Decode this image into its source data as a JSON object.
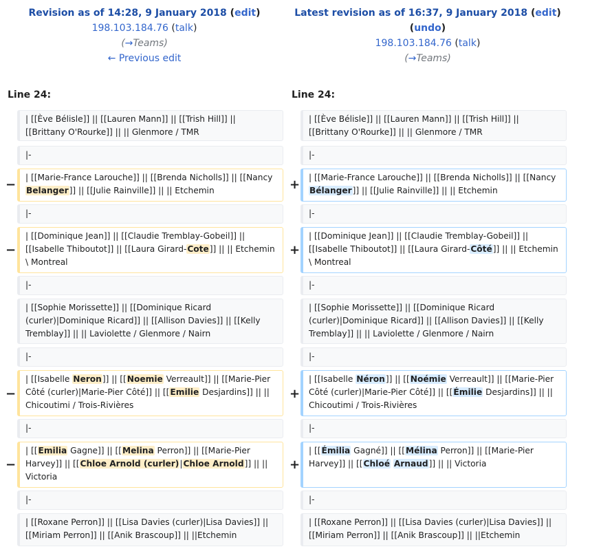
{
  "left": {
    "title_prefix": "Revision as of 14:28, 9 January 2018",
    "open_paren": "(",
    "edit_label": "edit",
    "close_paren": ")",
    "user": "198.103.184.76",
    "talk_label": "talk",
    "comment_arrow": "→",
    "comment": "Teams",
    "prev_edit": "← Previous edit",
    "line_label": "Line 24:"
  },
  "right": {
    "title_prefix": "Latest revision as of 16:37, 9 January 2018",
    "open_paren": "(",
    "edit_label": "edit",
    "close_paren": ")",
    "undo_label": "undo",
    "user": "198.103.184.76",
    "talk_label": "talk",
    "comment_arrow": "→",
    "comment": "Teams",
    "line_label": "Line 24:"
  },
  "markers": {
    "minus": "−",
    "plus": "+"
  },
  "rows": {
    "r1": {
      "text": "| [[Ève Bélisle]] || [[Lauren Mann]] || [[Trish Hill]] || [[Brittany O'Rourke]] ||  || Glenmore / TMR"
    },
    "sep": "|-",
    "r3": {
      "del": [
        "| [[Marie-France Larouche]] || [[Brenda Nicholls]] || [[Nancy ",
        "Belanger",
        "]] || [[Julie Rainville]] || || Etchemin"
      ],
      "add": [
        "| [[Marie-France Larouche]] || [[Brenda Nicholls]] || [[Nancy ",
        "Bélanger",
        "]] || [[Julie Rainville]] || || Etchemin"
      ]
    },
    "r5": {
      "del": [
        "| [[Dominique Jean]] || [[Claudie Tremblay-Gobeil]] || [[Isabelle Thiboutot]] || [[Laura Girard-",
        "Cote",
        "]] ||   || Etchemin \\ Montreal"
      ],
      "add": [
        "| [[Dominique Jean]] || [[Claudie Tremblay-Gobeil]] || [[Isabelle Thiboutot]] || [[Laura Girard-",
        "Côté",
        "]] ||   || Etchemin \\ Montreal"
      ]
    },
    "r7": {
      "text": "| [[Sophie Morissette]] || [[Dominique Ricard (curler)|Dominique Ricard]] || [[Allison Davies]] || [[Kelly Tremblay]] || || Laviolette / Glenmore / Nairn"
    },
    "r9": {
      "del": [
        "| [[Isabelle ",
        "Neron",
        "]] || [[",
        "Noemie",
        " Verreault]] || [[Marie-Pier Côté (curler)|Marie-Pier Côté]] || [[",
        "Emilie",
        " Desjardins]] || || Chicoutimi / Trois-Rivières"
      ],
      "add": [
        "| [[Isabelle ",
        "Néron",
        "]] || [[",
        "Noémie",
        " Verreault]] || [[Marie-Pier Côté (curler)|Marie-Pier Côté]] || [[",
        "Émilie",
        " Desjardins]] || || Chicoutimi / Trois-Rivières"
      ]
    },
    "r11": {
      "del": [
        "| [[",
        "Emilia",
        " Gagne]] || [[",
        "Melina",
        " Perron]] || [[Marie-Pier Harvey]] || [[",
        "Chloe Arnold (curler)",
        "|",
        "Chloe Arnold",
        "]] ||  || Victoria"
      ],
      "add": [
        "| [[",
        "Émilia",
        " Gagné]] || [[",
        "Mélina",
        " Perron]] || [[Marie-Pier Harvey]] || [[",
        "Chloé",
        " ",
        "Arnaud",
        "]] ||  || Victoria"
      ]
    },
    "r13": {
      "text": "| [[Roxane Perron]] || [[Lisa Davies (curler)|Lisa Davies]] || [[Miriam Perron]] || [[Anik Brascoup]] || ||Etchemin"
    }
  }
}
